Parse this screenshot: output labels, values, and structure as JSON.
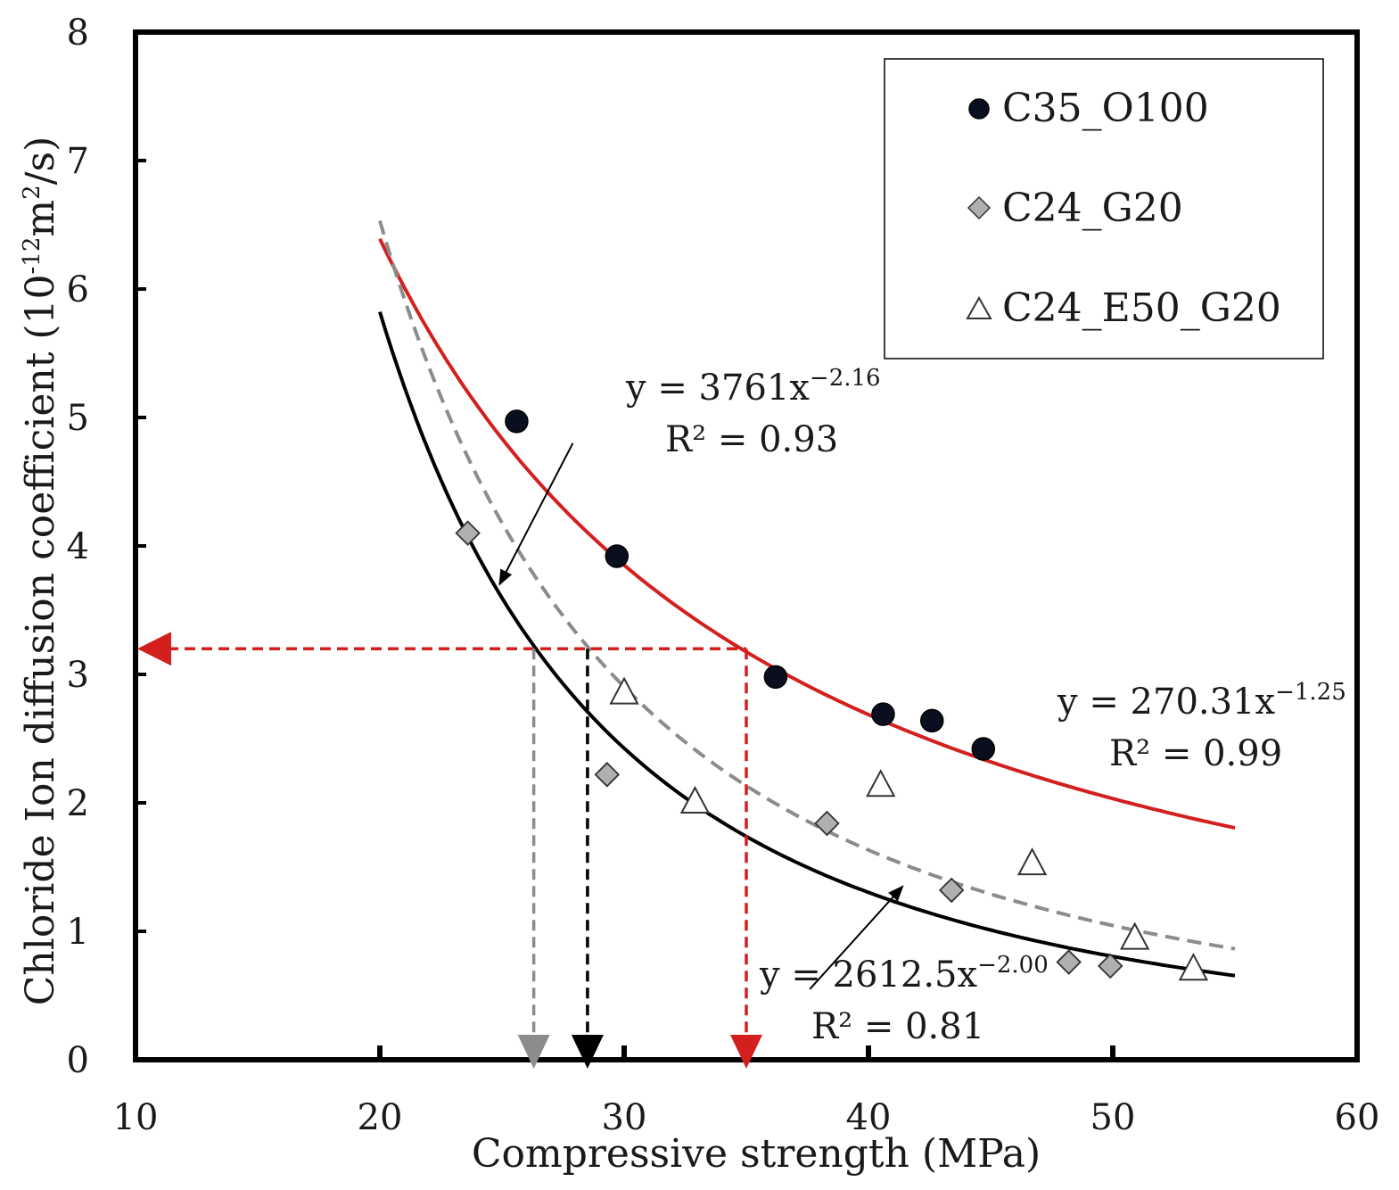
{
  "chart_data": {
    "type": "scatter",
    "xlabel": "Compressive strength (MPa)",
    "ylabel": "Chloride Ion diffusion coefficient (10",
    "ylabel_sup1": "-12",
    "ylabel_mid": "m",
    "ylabel_sup2": "2",
    "ylabel_end": "/s)",
    "xlim": [
      10,
      60
    ],
    "ylim": [
      0,
      8
    ],
    "x_ticks": [
      "10",
      "20",
      "30",
      "40",
      "50",
      "60"
    ],
    "y_ticks": [
      "0",
      "1",
      "2",
      "3",
      "4",
      "5",
      "6",
      "7",
      "8"
    ],
    "x_tick_values": [
      10,
      20,
      30,
      40,
      50,
      60
    ],
    "y_tick_values": [
      0,
      1,
      2,
      3,
      4,
      5,
      6,
      7,
      8
    ],
    "series": [
      {
        "name": "C35_O100",
        "marker": "circle",
        "color": "#0a0f1f",
        "points": [
          [
            25.6,
            4.97
          ],
          [
            29.7,
            3.92
          ],
          [
            36.2,
            2.98
          ],
          [
            40.6,
            2.69
          ],
          [
            42.6,
            2.64
          ],
          [
            44.7,
            2.42
          ]
        ]
      },
      {
        "name": "C24_G20",
        "marker": "diamond",
        "color": "#b0b0b0",
        "points": [
          [
            23.6,
            4.1
          ],
          [
            29.3,
            2.22
          ],
          [
            38.3,
            1.84
          ],
          [
            43.4,
            1.32
          ],
          [
            48.2,
            0.76
          ],
          [
            49.9,
            0.73
          ]
        ]
      },
      {
        "name": "C24_E50_G20",
        "marker": "triangle",
        "color": "#ffffff",
        "points": [
          [
            30.0,
            2.85
          ],
          [
            32.9,
            2.0
          ],
          [
            40.5,
            2.13
          ],
          [
            46.7,
            1.52
          ],
          [
            50.9,
            0.94
          ],
          [
            53.3,
            0.7
          ]
        ]
      }
    ],
    "fits": [
      {
        "name": "C35_O100 fit",
        "coef": 270.31,
        "exp": -1.25,
        "color": "#d41f1f",
        "dashed": false,
        "range": [
          20.0,
          55.0
        ]
      },
      {
        "name": "C24_E50_G20 fit",
        "coef": 3761,
        "exp": -2.16,
        "color": "#000000",
        "dashed": false,
        "range": [
          20.0,
          55.0
        ]
      },
      {
        "name": "C24_G20 fit",
        "coef": 2612.5,
        "exp": -2.0,
        "color": "#8c8c8c",
        "dashed": true,
        "range": [
          20.0,
          55.0
        ]
      }
    ],
    "equations": [
      {
        "prefix": "y = 3761x",
        "sup": "−2.16",
        "r2": "R² = 0.93"
      },
      {
        "prefix": "y = 270.31x",
        "sup": "−1.25",
        "r2": "R² = 0.99"
      },
      {
        "prefix": "y = 2612.5x",
        "sup": "−2.00",
        "r2": "R² = 0.81"
      }
    ],
    "legend": [
      "C35_O100",
      "C24_G20",
      "C24_E50_G20"
    ],
    "legend_position": "top-right",
    "threshold": {
      "y": 3.2,
      "color": "#d41f1f"
    },
    "guide_arrows": [
      {
        "x": 26.3,
        "y": 3.2,
        "color": "#8c8c8c"
      },
      {
        "x": 28.5,
        "y": 3.2,
        "color": "#000000"
      },
      {
        "x": 35.0,
        "y": 3.2,
        "color": "#d41f1f"
      }
    ],
    "annotation_arrows": [
      {
        "from": [
          27.9,
          4.8
        ],
        "to": [
          24.9,
          3.7
        ]
      },
      {
        "from": [
          37.6,
          0.55
        ],
        "to": [
          41.4,
          1.35
        ]
      }
    ]
  }
}
